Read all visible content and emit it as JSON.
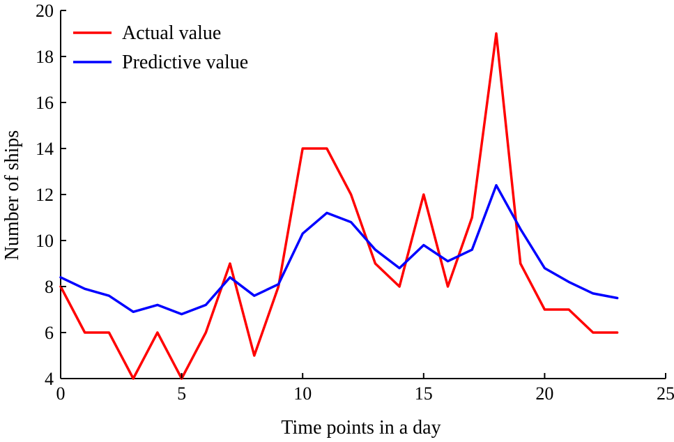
{
  "chart_data": {
    "type": "line",
    "title": "",
    "xlabel": "Time points in a day",
    "ylabel": "Number of ships",
    "xlim": [
      0,
      25
    ],
    "ylim": [
      4,
      20
    ],
    "xticks": [
      0,
      5,
      10,
      15,
      20,
      25
    ],
    "yticks": [
      4,
      6,
      8,
      10,
      12,
      14,
      16,
      18,
      20
    ],
    "grid": false,
    "legend_position": "top-left",
    "series": [
      {
        "name": "Actual value",
        "color": "#ff0000",
        "x": [
          0,
          1,
          2,
          3,
          4,
          5,
          6,
          7,
          8,
          9,
          10,
          11,
          12,
          13,
          14,
          15,
          16,
          17,
          18,
          19,
          20,
          21,
          22,
          23
        ],
        "values": [
          8,
          6,
          6,
          4,
          6,
          4,
          6,
          9,
          5,
          8,
          14,
          14,
          12,
          9,
          8,
          12,
          8,
          11,
          19,
          9,
          7,
          7,
          6,
          6
        ]
      },
      {
        "name": "Predictive value",
        "color": "#0000ff",
        "x": [
          0,
          1,
          2,
          3,
          4,
          5,
          6,
          7,
          8,
          9,
          10,
          11,
          12,
          13,
          14,
          15,
          16,
          17,
          18,
          19,
          20,
          21,
          22,
          23
        ],
        "values": [
          8.4,
          7.9,
          7.6,
          6.9,
          7.2,
          6.8,
          7.2,
          8.4,
          7.6,
          8.1,
          10.3,
          11.2,
          10.8,
          9.6,
          8.8,
          9.8,
          9.1,
          9.6,
          12.4,
          10.5,
          8.8,
          8.2,
          7.7,
          7.5
        ]
      }
    ]
  }
}
